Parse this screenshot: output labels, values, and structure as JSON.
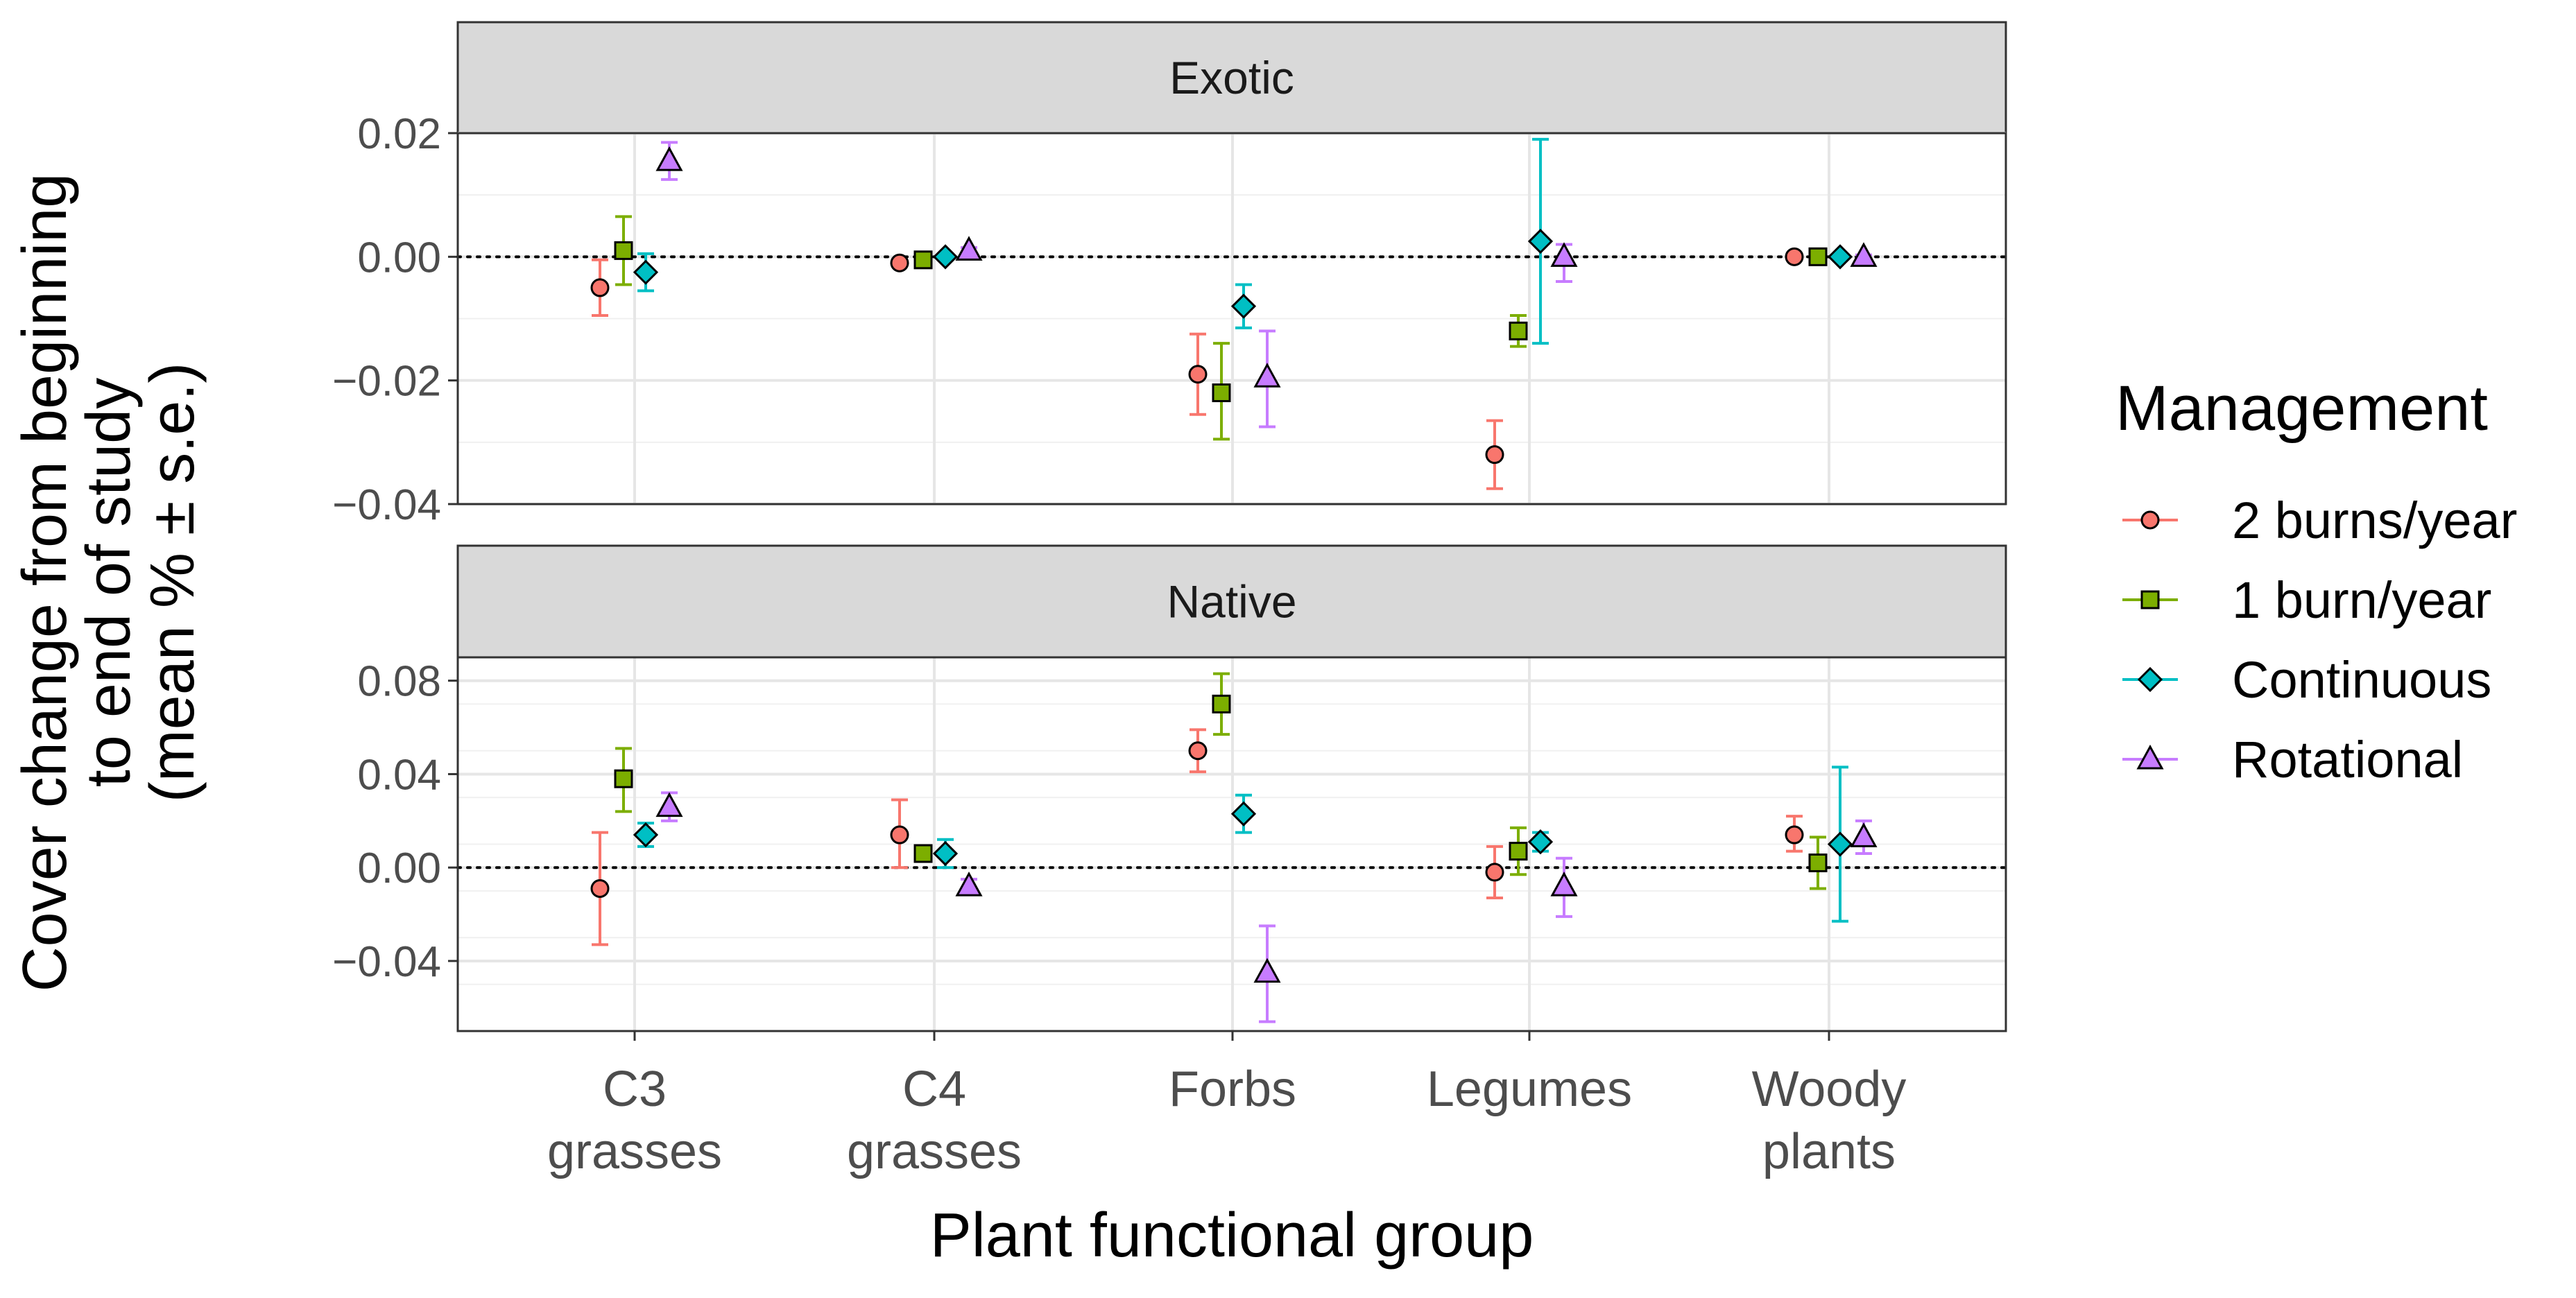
{
  "chart_data": {
    "type": "scatter",
    "subtype": "faceted point-range (mean ± s.e.)",
    "xlabel": "Plant functional group",
    "ylabel": [
      "Cover change from beginning",
      "to end of study",
      "(mean % ± s.e.)"
    ],
    "categories": [
      [
        "C3",
        "grasses"
      ],
      [
        "C4",
        "grasses"
      ],
      [
        "Forbs"
      ],
      [
        "Legumes"
      ],
      [
        "Woody",
        "plants"
      ]
    ],
    "legend": {
      "title": "Management",
      "position": "right",
      "entries": [
        {
          "label": "2 burns/year",
          "color": "#F8766D",
          "shape": "circle"
        },
        {
          "label": "1 burn/year",
          "color": "#7CAE00",
          "shape": "square"
        },
        {
          "label": "Continuous",
          "color": "#00BFC4",
          "shape": "diamond"
        },
        {
          "label": "Rotational",
          "color": "#C77CFF",
          "shape": "triangle"
        }
      ]
    },
    "reference_line": 0,
    "grid": true,
    "facets": [
      {
        "label": "Exotic",
        "ylim": [
          -0.04,
          0.02
        ],
        "yticks": [
          0.02,
          0.0,
          -0.02,
          -0.04
        ],
        "yticklabels": [
          "0.02",
          "0.00",
          "−0.02",
          "−0.04"
        ],
        "series": [
          {
            "name": "2 burns/year",
            "mean": [
              -0.005,
              -0.001,
              -0.019,
              -0.032,
              0.0
            ],
            "lower": [
              -0.0095,
              -0.0015,
              -0.0255,
              -0.0375,
              -0.0003
            ],
            "upper": [
              -0.0005,
              -0.0005,
              -0.0125,
              -0.0265,
              0.0003
            ]
          },
          {
            "name": "1 burn/year",
            "mean": [
              0.001,
              -0.0005,
              -0.022,
              -0.012,
              0.0
            ],
            "lower": [
              -0.0045,
              -0.001,
              -0.0295,
              -0.0145,
              -0.0003
            ],
            "upper": [
              0.0065,
              0.0,
              -0.014,
              -0.0095,
              0.0003
            ]
          },
          {
            "name": "Continuous",
            "mean": [
              -0.0025,
              0.0,
              -0.008,
              0.0025,
              0.0
            ],
            "lower": [
              -0.0055,
              -0.0005,
              -0.0115,
              -0.014,
              -0.0003
            ],
            "upper": [
              0.0005,
              0.0005,
              -0.0045,
              0.019,
              0.0003
            ]
          },
          {
            "name": "Rotational",
            "mean": [
              0.0155,
              0.001,
              -0.0195,
              0.0,
              0.0
            ],
            "lower": [
              0.0125,
              0.0005,
              -0.0275,
              -0.004,
              -0.0003
            ],
            "upper": [
              0.0185,
              0.0015,
              -0.012,
              0.002,
              0.0003
            ]
          }
        ]
      },
      {
        "label": "Native",
        "ylim": [
          -0.07,
          0.09
        ],
        "yticks": [
          0.08,
          0.04,
          0.0,
          -0.04
        ],
        "yticklabels": [
          "0.08",
          "0.04",
          "0.00",
          "−0.04"
        ],
        "series": [
          {
            "name": "2 burns/year",
            "mean": [
              -0.009,
              0.014,
              0.05,
              -0.002,
              0.014
            ],
            "lower": [
              -0.033,
              0.0,
              0.041,
              -0.013,
              0.007
            ],
            "upper": [
              0.015,
              0.029,
              0.059,
              0.009,
              0.022
            ]
          },
          {
            "name": "1 burn/year",
            "mean": [
              0.038,
              0.006,
              0.07,
              0.007,
              0.002
            ],
            "lower": [
              0.024,
              0.004,
              0.057,
              -0.003,
              -0.009
            ],
            "upper": [
              0.051,
              0.008,
              0.083,
              0.017,
              0.013
            ]
          },
          {
            "name": "Continuous",
            "mean": [
              0.014,
              0.006,
              0.023,
              0.011,
              0.01
            ],
            "lower": [
              0.009,
              0.0,
              0.015,
              0.007,
              -0.023
            ],
            "upper": [
              0.019,
              0.012,
              0.031,
              0.015,
              0.043
            ]
          },
          {
            "name": "Rotational",
            "mean": [
              0.026,
              -0.008,
              -0.045,
              -0.008,
              0.013
            ],
            "lower": [
              0.02,
              -0.011,
              -0.066,
              -0.021,
              0.006
            ],
            "upper": [
              0.032,
              -0.005,
              -0.025,
              0.004,
              0.02
            ]
          }
        ]
      }
    ]
  }
}
